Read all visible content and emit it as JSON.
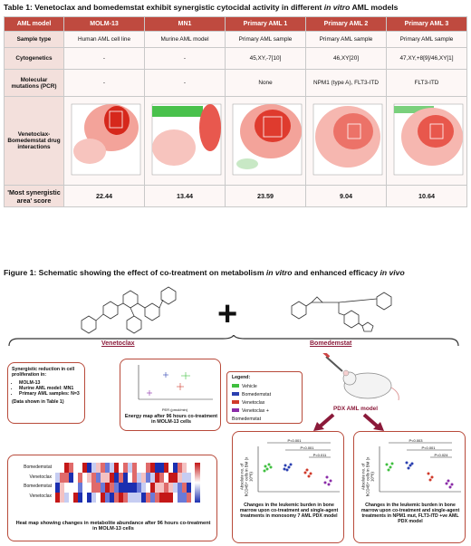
{
  "table": {
    "title_plain": "Table 1: Venetoclax and bomedemstat exhibit synergistic cytocidal activity in different",
    "title_italic": "in vitro",
    "title_tail": "AML models",
    "headers": [
      "AML model",
      "MOLM-13",
      "MN1",
      "Primary AML 1",
      "Primary AML 2",
      "Primary AML 3"
    ],
    "rows": [
      {
        "label": "Sample type",
        "cells": [
          "Human AML cell line",
          "Murine AML model",
          "Primary AML sample",
          "Primary AML sample",
          "Primary AML sample"
        ]
      },
      {
        "label": "Cytogenetics",
        "cells": [
          "-",
          "-",
          "45,XY,-7[10]",
          "46,XY[20]",
          "47,XY,+8[9]/46,XY[1]"
        ]
      },
      {
        "label": "Molecular mutations (PCR)",
        "cells": [
          "-",
          "-",
          "None",
          "NPM1 (type A), FLT3-ITD",
          "FLT3-ITD"
        ]
      },
      {
        "label": "Venetoclax-Bomedemstat drug interactions",
        "cells": [
          "",
          "",
          "",
          "",
          ""
        ]
      },
      {
        "label": "'Most synergistic area' score",
        "cells": [
          "22.44",
          "13.44",
          "23.59",
          "9.04",
          "10.64"
        ]
      }
    ]
  },
  "figure": {
    "title_plain": "Figure 1: Schematic showing the effect of co-treatment on metabolism",
    "title_italic1": "in vitro",
    "title_mid": "and enhanced efficacy",
    "title_italic2": "in vivo",
    "drug1": "Venetoclax",
    "drug2": "Bomedemstat",
    "synergy_box": {
      "heading": "Synergistic reduction in cell proliferation in:",
      "items": [
        "MOLM-13",
        "Murine AML model: MN1",
        "Primary AML samples: N=3"
      ],
      "note": "(Data shown in Table 1)"
    },
    "energy_caption": "Energy map after 96 hours co-treatment in MOLM-13 cells",
    "energy_xlabel": "PER (pmol/min)",
    "energy_ylabel": "OCR (pmol/min)",
    "heatmap_caption": "Heat map showing changes in metabolite abundance after 96 hours co-treatment in MOLM-13 cells",
    "heatmap_rows": [
      "Bomedemstat",
      "Venetoclax",
      "Bomedemstat",
      "Venetoclax"
    ],
    "pdx_label": "PDX AML model",
    "legend_title": "Legend:",
    "legend": [
      {
        "label": "Vehicle",
        "color": "#3fbf3f"
      },
      {
        "label": "Bomedemstat",
        "color": "#2a3fb0"
      },
      {
        "label": "Venetoclax",
        "color": "#d03a2a"
      },
      {
        "label": "Venetoclax + Bomedemstat",
        "color": "#8a2ca8"
      }
    ],
    "plot1_ylabel": "Absolute no. of hCD45+ cells in BM (x 10^6)",
    "plot1_pvals": [
      "P<0.001",
      "P<0.001",
      "P<0.011"
    ],
    "plot1_caption": "Changes in the leukemic burden in bone marrow upon co-treatment and single-agent treatments in monosomy 7 AML PDX model",
    "plot2_ylabel": "Absolute no. of hCD45+ cells in BM (x 10^6)",
    "plot2_pvals": [
      "P<0.003",
      "P<0.001",
      "P<0.024"
    ],
    "plot2_caption": "Changes in the leukemic burden in bone marrow upon co-treatment and single-agent treatments in NPM1 mut, FLT3-ITD +ve AML PDX model"
  }
}
